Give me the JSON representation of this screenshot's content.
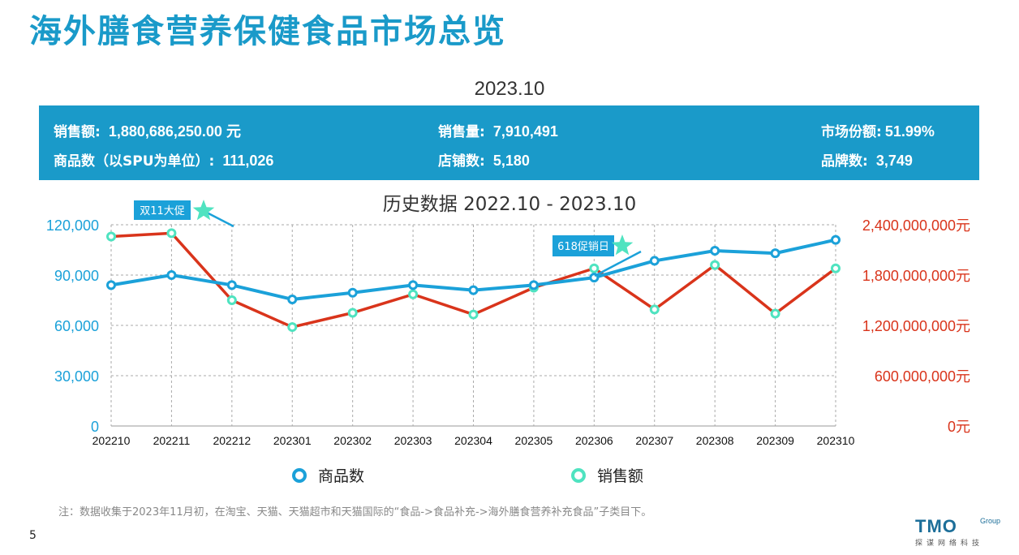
{
  "page": {
    "title": "海外膳食营养保健食品市场总览",
    "period": "2023.10",
    "page_number": "5",
    "footnote": "注：数据收集于2023年11月初，在淘宝、天猫、天猫超市和天猫国际的“食品->食品补充->海外膳食营养补充食品”子类目下。",
    "logo": {
      "main": "TMO",
      "group": "Group",
      "sub": "探谋网络科技"
    }
  },
  "stats": {
    "sales_amount_label": "销售额:",
    "sales_amount_value": "1,880,686,250.00 元",
    "sales_volume_label": "销售量:",
    "sales_volume_value": "7,910,491",
    "market_share_label": "市场份额:",
    "market_share_value": "51.99%",
    "product_count_label": "商品数（以SPU为单位）:",
    "product_count_value": "111,026",
    "store_count_label": "店铺数:",
    "store_count_value": "5,180",
    "brand_count_label": "品牌数:",
    "brand_count_value": "3,749"
  },
  "colors": {
    "primary": "#1a9ac9",
    "products": "#1ba1d9",
    "sales_line": "#d9341b",
    "sales_marker": "#4fe3c0",
    "right_axis": "#d9341b"
  },
  "chart_data": {
    "type": "line",
    "title": "历史数据 2022.10 - 2023.10",
    "categories": [
      "202210",
      "202211",
      "202212",
      "202301",
      "202302",
      "202303",
      "202304",
      "202305",
      "202306",
      "202307",
      "202308",
      "202309",
      "202310"
    ],
    "series": [
      {
        "name": "商品数",
        "axis": "left",
        "values": [
          84000,
          90000,
          84000,
          75500,
          79500,
          84000,
          81000,
          84000,
          88500,
          98500,
          104500,
          103000,
          111000
        ]
      },
      {
        "name": "销售额",
        "axis": "right",
        "values": [
          2260000000,
          2300000000,
          1500000000,
          1180000000,
          1350000000,
          1570000000,
          1330000000,
          1650000000,
          1880000000,
          1390000000,
          1920000000,
          1340000000,
          1880000000
        ]
      }
    ],
    "left_axis": {
      "ylim": [
        0,
        120000
      ],
      "ticks": [
        "0",
        "30,000",
        "60,000",
        "90,000",
        "120,000"
      ]
    },
    "right_axis": {
      "ylim": [
        0,
        2400000000
      ],
      "ticks": [
        "0元",
        "600,000,000元",
        "1,200,000,000元",
        "1,800,000,000元",
        "2,400,000,000元"
      ]
    },
    "grid": true,
    "legend_position": "bottom",
    "annotations": [
      {
        "label": "双11大促",
        "category": "202211"
      },
      {
        "label": "618促销日",
        "category": "202306"
      }
    ]
  }
}
